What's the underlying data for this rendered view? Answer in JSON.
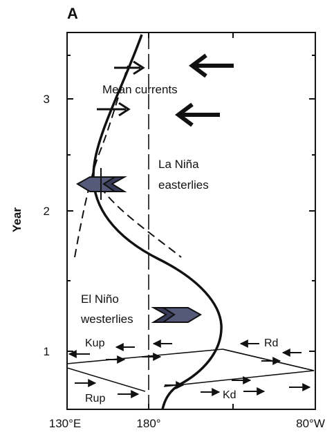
{
  "figure": {
    "panel_label": "A",
    "y_axis_label": "Year",
    "y_ticks": [
      "1",
      "2",
      "3"
    ],
    "x_ticks": [
      "130°E",
      "180°",
      "80°W"
    ],
    "annotations": {
      "mean_currents": "Mean currents",
      "la_nina_line1": "La Niña",
      "la_nina_line2": "easterlies",
      "el_nino_line1": "El Niño",
      "el_nino_line2": "westerlies"
    },
    "wave_labels": {
      "kup": "Kup",
      "rd": "Rd",
      "rup": "Rup",
      "kd": "Kd"
    }
  }
}
